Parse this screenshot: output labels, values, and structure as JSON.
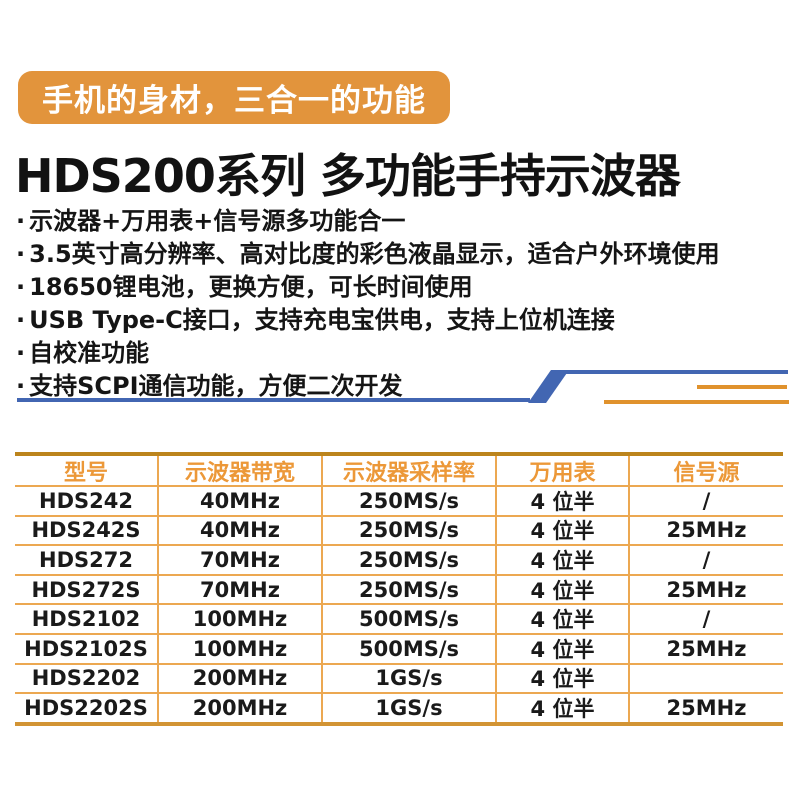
{
  "badge": {
    "label": "手机的身材，三合一的功能",
    "bg_color": "#E2943C"
  },
  "title": {
    "text": "HDS200系列 多功能手持示波器"
  },
  "features": {
    "bullet_char": "·",
    "items": [
      "示波器+万用表+信号源多功能合一",
      "3.5英寸高分辨率、高对比度的彩色液晶显示，适合户外环境使用",
      "18650锂电池，更换方便，可长时间使用",
      "USB Type-C接口，支持充电宝供电，支持上位机连接",
      "自校准功能",
      "支持SCPI通信功能，方便二次开发"
    ]
  },
  "decor": {
    "blue_color": "#4266B2",
    "orange_color": "#E0922D"
  },
  "table": {
    "header_color": "#EC9838",
    "border_color": "#ECA851",
    "columns": [
      "型号",
      "示波器带宽",
      "示波器采样率",
      "万用表",
      "信号源"
    ],
    "rows": [
      {
        "model": "HDS242",
        "bandwidth": "40MHz",
        "sample_rate": "250MS/s",
        "multimeter": "4 位半",
        "signal_source": "/"
      },
      {
        "model": "HDS242S",
        "bandwidth": "40MHz",
        "sample_rate": "250MS/s",
        "multimeter": "4 位半",
        "signal_source": "25MHz"
      },
      {
        "model": "HDS272",
        "bandwidth": "70MHz",
        "sample_rate": "250MS/s",
        "multimeter": "4 位半",
        "signal_source": "/"
      },
      {
        "model": "HDS272S",
        "bandwidth": "70MHz",
        "sample_rate": "250MS/s",
        "multimeter": "4 位半",
        "signal_source": "25MHz"
      },
      {
        "model": "HDS2102",
        "bandwidth": "100MHz",
        "sample_rate": "500MS/s",
        "multimeter": "4 位半",
        "signal_source": "/"
      },
      {
        "model": "HDS2102S",
        "bandwidth": "100MHz",
        "sample_rate": "500MS/s",
        "multimeter": "4 位半",
        "signal_source": "25MHz"
      },
      {
        "model": "HDS2202",
        "bandwidth": "200MHz",
        "sample_rate": "1GS/s",
        "multimeter": "4 位半",
        "signal_source": ""
      },
      {
        "model": "HDS2202S",
        "bandwidth": "200MHz",
        "sample_rate": "1GS/s",
        "multimeter": "4 位半",
        "signal_source": "25MHz"
      }
    ]
  }
}
